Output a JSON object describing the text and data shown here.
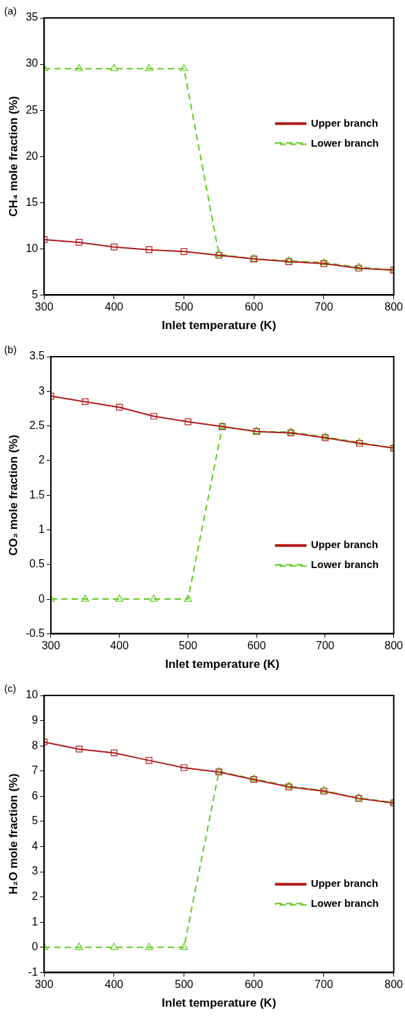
{
  "chart_data": [
    {
      "type": "line",
      "title": "(a)",
      "xlabel": "Inlet temperature (K)",
      "ylabel": "CH₄ mole fraction (%)",
      "x": [
        300,
        350,
        400,
        450,
        500,
        550,
        600,
        650,
        700,
        750,
        800
      ],
      "xlim": [
        300,
        800
      ],
      "xticks": [
        300,
        400,
        500,
        600,
        700,
        800
      ],
      "ylim": [
        5,
        35
      ],
      "yticks": [
        5,
        10,
        15,
        20,
        25,
        30,
        35
      ],
      "grid": false,
      "legend": "right",
      "series": [
        {
          "name": "Upper branch",
          "color": "#b01c1c",
          "marker": "square",
          "line_style": "solid",
          "values": [
            11.0,
            10.7,
            10.2,
            9.9,
            9.7,
            9.3,
            8.9,
            8.6,
            8.4,
            7.9,
            7.7
          ]
        },
        {
          "name": "Lower branch",
          "color": "#5ccc1c",
          "marker": "triangle",
          "line_style": "dashed",
          "values": [
            29.5,
            29.5,
            29.5,
            29.5,
            29.5,
            9.4,
            8.9,
            8.7,
            8.5,
            8.0,
            7.7
          ]
        }
      ]
    },
    {
      "type": "line",
      "title": "(b)",
      "xlabel": "Inlet temperature (K)",
      "ylabel": "CO₂ mole fraction (%)",
      "x": [
        300,
        350,
        400,
        450,
        500,
        550,
        600,
        650,
        700,
        750,
        800
      ],
      "xlim": [
        300,
        800
      ],
      "xticks": [
        300,
        400,
        500,
        600,
        700,
        800
      ],
      "ylim": [
        -0.5,
        3.5
      ],
      "yticks": [
        -0.5,
        0,
        0.5,
        1,
        1.5,
        2,
        2.5,
        3,
        3.5
      ],
      "grid": false,
      "legend": "bottom right",
      "series": [
        {
          "name": "Upper branch",
          "color": "#b01c1c",
          "marker": "square",
          "line_style": "solid",
          "values": [
            2.93,
            2.85,
            2.77,
            2.64,
            2.56,
            2.49,
            2.42,
            2.4,
            2.33,
            2.25,
            2.18
          ]
        },
        {
          "name": "Lower branch",
          "color": "#5ccc1c",
          "marker": "triangle",
          "line_style": "dashed",
          "values": [
            0,
            0,
            0,
            0,
            0,
            2.49,
            2.42,
            2.41,
            2.34,
            2.26,
            2.18
          ]
        }
      ]
    },
    {
      "type": "line",
      "title": "(c)",
      "xlabel": "Inlet temperature (K)",
      "ylabel": "H₂O mole fraction (%)",
      "x": [
        300,
        350,
        400,
        450,
        500,
        550,
        600,
        650,
        700,
        750,
        800
      ],
      "xlim": [
        300,
        800
      ],
      "xticks": [
        300,
        400,
        500,
        600,
        700,
        800
      ],
      "ylim": [
        -1,
        10
      ],
      "yticks": [
        -1,
        0,
        1,
        2,
        3,
        4,
        5,
        6,
        7,
        8,
        9,
        10
      ],
      "grid": false,
      "legend": "bottom right",
      "series": [
        {
          "name": "Upper branch",
          "color": "#b01c1c",
          "marker": "square",
          "line_style": "solid",
          "values": [
            8.15,
            7.87,
            7.72,
            7.42,
            7.13,
            6.96,
            6.66,
            6.37,
            6.2,
            5.91,
            5.73
          ]
        },
        {
          "name": "Lower branch",
          "color": "#5ccc1c",
          "marker": "triangle",
          "line_style": "dashed",
          "values": [
            0,
            0,
            0,
            0,
            0,
            6.98,
            6.68,
            6.4,
            6.22,
            5.93,
            5.75
          ]
        }
      ]
    }
  ]
}
